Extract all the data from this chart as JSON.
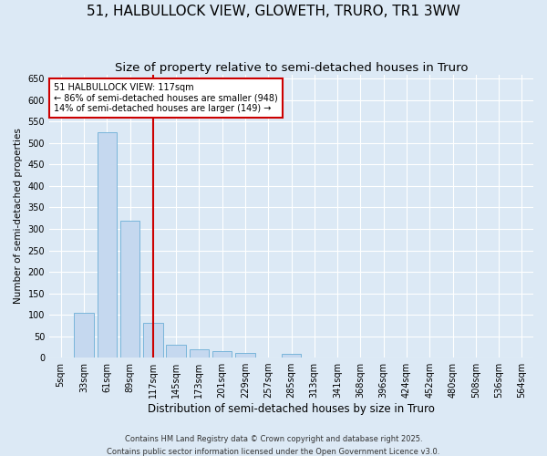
{
  "title": "51, HALBULLOCK VIEW, GLOWETH, TRURO, TR1 3WW",
  "subtitle": "Size of property relative to semi-detached houses in Truro",
  "xlabel": "Distribution of semi-detached houses by size in Truro",
  "ylabel": "Number of semi-detached properties",
  "categories": [
    "5sqm",
    "33sqm",
    "61sqm",
    "89sqm",
    "117sqm",
    "145sqm",
    "173sqm",
    "201sqm",
    "229sqm",
    "257sqm",
    "285sqm",
    "313sqm",
    "341sqm",
    "368sqm",
    "396sqm",
    "424sqm",
    "452sqm",
    "480sqm",
    "508sqm",
    "536sqm",
    "564sqm"
  ],
  "bar_heights": [
    0,
    105,
    525,
    320,
    80,
    30,
    20,
    15,
    10,
    0,
    8,
    0,
    0,
    0,
    0,
    0,
    0,
    0,
    0,
    0,
    0
  ],
  "bar_color": "#c5d8ef",
  "bar_edge_color": "#6baed6",
  "vline_x_index": 4,
  "vline_color": "#cc0000",
  "annotation_title": "51 HALBULLOCK VIEW: 117sqm",
  "annotation_line1": "← 86% of semi-detached houses are smaller (948)",
  "annotation_line2": "14% of semi-detached houses are larger (149) →",
  "annotation_box_color": "#cc0000",
  "ylim": [
    0,
    660
  ],
  "yticks": [
    0,
    50,
    100,
    150,
    200,
    250,
    300,
    350,
    400,
    450,
    500,
    550,
    600,
    650
  ],
  "footnote1": "Contains HM Land Registry data © Crown copyright and database right 2025.",
  "footnote2": "Contains public sector information licensed under the Open Government Licence v3.0.",
  "background_color": "#dce9f5",
  "plot_bg_color": "#dce9f5",
  "grid_color": "#ffffff",
  "title_fontsize": 11,
  "subtitle_fontsize": 9.5,
  "xlabel_fontsize": 8.5,
  "ylabel_fontsize": 7.5,
  "tick_fontsize": 7,
  "annot_fontsize": 7,
  "footnote_fontsize": 6
}
